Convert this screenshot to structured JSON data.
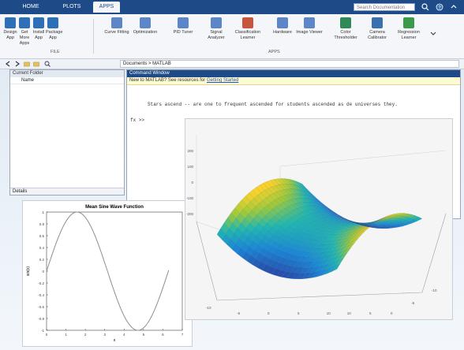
{
  "app": {
    "tabs": [
      "HOME",
      "PLOTS",
      "APPS"
    ],
    "active_tab_index": 2,
    "search_placeholder": "Search Documentation"
  },
  "ribbon": {
    "buttons": [
      {
        "label": "Design App",
        "icon": "design-app-icon",
        "color": "#2f6fb6"
      },
      {
        "label": "Get More Apps",
        "icon": "get-apps-icon",
        "color": "#2f6fb6"
      },
      {
        "label": "Install App",
        "icon": "install-app-icon",
        "color": "#2f6fb6"
      },
      {
        "label": "Package App",
        "icon": "package-app-icon",
        "color": "#2f6fb6"
      },
      {
        "label": "Curve Fitting",
        "icon": "curve-fitting-icon",
        "color": "#5c86c7"
      },
      {
        "label": "Optimization",
        "icon": "optimization-icon",
        "color": "#5c86c7"
      },
      {
        "label": "PID Tuner",
        "icon": "pid-tuner-icon",
        "color": "#5c86c7"
      },
      {
        "label": "Signal Analyzer",
        "icon": "signal-analyzer-icon",
        "color": "#5c86c7"
      },
      {
        "label": "Classification Learner",
        "icon": "classification-icon",
        "color": "#c8553d"
      },
      {
        "label": "Hardware",
        "icon": "hardware-icon",
        "color": "#5c86c7"
      },
      {
        "label": "Image Viewer",
        "icon": "image-viewer-icon",
        "color": "#5c86c7"
      },
      {
        "label": "Color Thresholder",
        "icon": "color-thresholder-icon",
        "color": "#2e8b57"
      },
      {
        "label": "Camera Calibrator",
        "icon": "camera-calibrator-icon",
        "color": "#3a6fb0"
      },
      {
        "label": "Regression Learner",
        "icon": "regression-learner-icon",
        "color": "#3a9b4a"
      }
    ],
    "group_file": "FILE",
    "group_apps": "APPS"
  },
  "address": {
    "path": "Documents > MATLAB"
  },
  "current_folder": {
    "title": "Current Folder",
    "item": "Name",
    "details": "Details"
  },
  "command_window": {
    "title": "Command Window",
    "info_prefix": "New to MATLAB? See resources for ",
    "info_link": "Getting Started",
    "line1": "Stars ascend -- are one to frequent ascended for students ascended as de universes they.",
    "prompt": "fx >>"
  },
  "figure_sine": {
    "title": "Mean Sine Wave Function",
    "ylabel": "sin(x)",
    "xlabel": "x",
    "yticks": [
      "1",
      "0.8",
      "0.6",
      "0.4",
      "0.2",
      "0",
      "-0.2",
      "-0.4",
      "-0.6",
      "-0.8",
      "-1"
    ],
    "xticks": [
      "0",
      "1",
      "2",
      "3",
      "4",
      "5",
      "6",
      "7"
    ]
  },
  "figure_surf": {
    "zticks": [
      "200",
      "100",
      "0",
      "-100",
      "-200"
    ],
    "xticks": [
      "-10",
      "-5",
      "0",
      "5",
      "10"
    ],
    "yticks": [
      "-10",
      "-5",
      "0",
      "5",
      "10"
    ]
  },
  "chart_data": [
    {
      "type": "line",
      "title": "Mean Sine Wave Function",
      "xlabel": "x",
      "ylabel": "sin(x)",
      "x": [
        0,
        0.5,
        1,
        1.5,
        2,
        2.5,
        3,
        3.5,
        4,
        4.5,
        5,
        5.5,
        6,
        6.3
      ],
      "series": [
        {
          "values": [
            0,
            0.48,
            0.84,
            1.0,
            0.91,
            0.6,
            0.14,
            -0.35,
            -0.76,
            -0.98,
            -0.96,
            -0.71,
            -0.28,
            0.02
          ]
        }
      ],
      "xlim": [
        0,
        7
      ],
      "ylim": [
        -1,
        1
      ],
      "grid": false
    },
    {
      "type": "surface",
      "zlim": [
        -200,
        200
      ],
      "xlim": [
        -10,
        10
      ],
      "ylim": [
        -10,
        10
      ],
      "colormap": "parula"
    }
  ]
}
